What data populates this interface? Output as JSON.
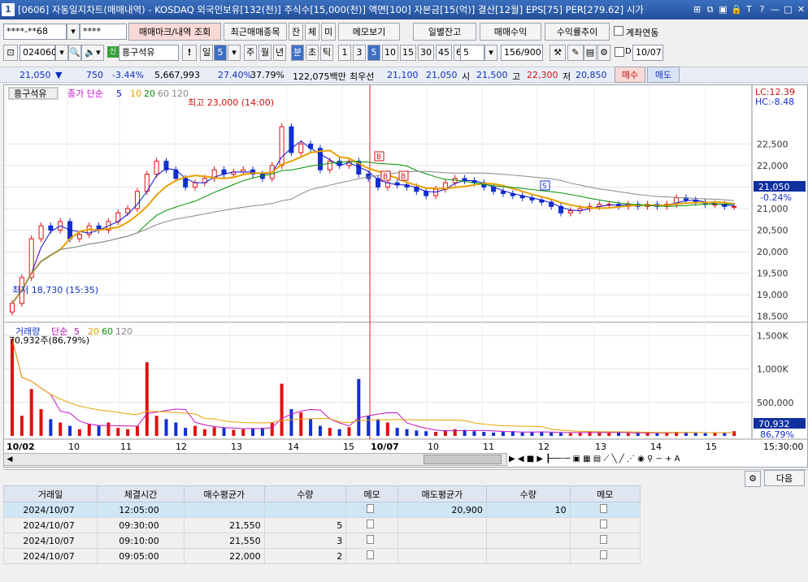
{
  "window": {
    "number": "1",
    "title": "[0606] 자동일지차트(매매내역) - KOSDAQ 외국인보유[132(천)] 주식수[15,000(천)] 액면[100] 자본금[15(억)] 결산[12월] EPS[75] PER[279.62] 시가",
    "icons": [
      "pin-icon",
      "restore-icon",
      "window-icon",
      "lock-icon",
      "text-icon",
      "help-icon",
      "minimize-icon",
      "maximize-icon",
      "close-icon"
    ],
    "icon_glyphs": [
      "⊞",
      "⧉",
      "▣",
      "🔒",
      "T",
      "?",
      "—",
      "□",
      "✕"
    ]
  },
  "toolbar1": {
    "account": "****-**68",
    "password": "****",
    "btn_trademark": "매매마크/내역 조회",
    "btn_recent": "최근매매종목",
    "btn_jan": "잔",
    "btn_che": "체",
    "btn_mi": "미",
    "btn_memo": "메모보기",
    "btn_daily_balance": "일별잔고",
    "btn_trade_profit": "매매수익",
    "btn_return_trend": "수익률추이",
    "account_link_label": "계좌연동"
  },
  "toolbar2": {
    "code": "024060",
    "stock_name": "흥구석유",
    "badge": "신",
    "period_buttons": [
      "일",
      "주",
      "월",
      "년",
      "분",
      "초",
      "틱"
    ],
    "selected_interval": "5",
    "minute_buttons": [
      "1",
      "3",
      "5",
      "10",
      "15",
      "30",
      "45",
      "60"
    ],
    "count_select": "5",
    "range": "156/900",
    "date": "10/07"
  },
  "quote": {
    "price": "21,050",
    "change_arrow": "▼",
    "change": "750",
    "change_pct": "-3.44%",
    "volume": "5,667,993",
    "ratio1": "27.40%",
    "ratio2": "37.79%",
    "amount": "122,075백만",
    "priority_label": "최우선",
    "bid": "21,100",
    "ask": "21,050",
    "open_label": "시",
    "open": "21,500",
    "high_label": "고",
    "high": "22,300",
    "low_label": "저",
    "low": "20,850",
    "buy": "매수",
    "sell": "매도"
  },
  "chart_data": [
    {
      "type": "candlestick",
      "title": "흥구석유",
      "legend": {
        "series": "종가 단순",
        "periods": [
          "5",
          "10",
          "20",
          "60",
          "120"
        ],
        "colors": [
          "#1010d0",
          "#e8a000",
          "#009000",
          "#888888"
        ]
      },
      "ylim": [
        18400,
        23600
      ],
      "yticks": [
        "22,500",
        "22,000",
        "21,500",
        "21,000",
        "20,500",
        "20,000",
        "19,500",
        "19,000",
        "18,500"
      ],
      "lc": "LC:12.39",
      "hc": "HC:-8.48",
      "current_price": "21,050",
      "current_change": "-0.24%",
      "high_note": "최고 23,000 (14:00)",
      "low_note": "최저 18,730 (15:35)",
      "buy_markers": [
        "B",
        "B",
        "B"
      ],
      "sell_markers": [
        "S"
      ],
      "closes": [
        18800,
        19400,
        20300,
        20600,
        20500,
        20700,
        20300,
        20400,
        20600,
        20500,
        20700,
        20900,
        21000,
        21400,
        21800,
        22100,
        21900,
        21700,
        21500,
        21600,
        21700,
        21900,
        21800,
        21850,
        21900,
        21800,
        21700,
        22000,
        22900,
        22300,
        22500,
        22400,
        21900,
        22100,
        22000,
        22100,
        21800,
        21700,
        21500,
        21600,
        21550,
        21500,
        21400,
        21300,
        21450,
        21600,
        21700,
        21650,
        21600,
        21500,
        21400,
        21350,
        21300,
        21250,
        21200,
        21150,
        21050,
        20900,
        20950,
        21000,
        21050,
        21100,
        21100,
        21050,
        21100,
        21050,
        21100,
        21050,
        21100,
        21250,
        21200,
        21150,
        21100,
        21100,
        21050,
        21050
      ]
    },
    {
      "type": "bar",
      "title": "거래량",
      "legend": {
        "series": "단순",
        "periods": [
          "5",
          "20",
          "60",
          "120"
        ]
      },
      "ylim": [
        0,
        1600000
      ],
      "yticks": [
        "1,500K",
        "1,000K",
        "500,000"
      ],
      "current_volume": "70,932",
      "current_pct": "86,79%",
      "peak_note": "70,932주(86,79%)",
      "values": [
        1450,
        300,
        700,
        400,
        250,
        200,
        150,
        100,
        180,
        150,
        200,
        120,
        100,
        150,
        1100,
        300,
        250,
        200,
        120,
        150,
        100,
        130,
        120,
        90,
        100,
        110,
        120,
        200,
        780,
        400,
        350,
        250,
        150,
        120,
        100,
        130,
        850,
        300,
        250,
        200,
        120,
        100,
        80,
        70,
        60,
        80,
        100,
        90,
        70,
        60,
        50,
        60,
        70,
        50,
        60,
        55,
        50,
        45,
        40,
        55,
        60,
        50,
        45,
        50,
        40,
        45,
        50,
        40,
        45,
        60,
        50,
        45,
        40,
        45,
        50,
        70
      ]
    }
  ],
  "xaxis": {
    "labels": [
      "10/02",
      "10",
      "11",
      "12",
      "13",
      "14",
      "15",
      "10/07",
      "10",
      "11",
      "12",
      "13",
      "14",
      "15"
    ],
    "time_label": "15:30:00"
  },
  "bottom": {
    "next_btn": "다음"
  },
  "trades": {
    "headers": [
      "거래일",
      "체결시간",
      "매수평균가",
      "수량",
      "메모",
      "매도평균가",
      "수량",
      "메모"
    ],
    "rows": [
      {
        "date": "2024/10/07",
        "time": "12:05:00",
        "buy_avg": "",
        "buy_qty": "",
        "sell_avg": "20,900",
        "sell_qty": "10"
      },
      {
        "date": "2024/10/07",
        "time": "09:30:00",
        "buy_avg": "21,550",
        "buy_qty": "5",
        "sell_avg": "",
        "sell_qty": ""
      },
      {
        "date": "2024/10/07",
        "time": "09:10:00",
        "buy_avg": "21,550",
        "buy_qty": "3",
        "sell_avg": "",
        "sell_qty": ""
      },
      {
        "date": "2024/10/07",
        "time": "09:05:00",
        "buy_avg": "22,000",
        "buy_qty": "2",
        "sell_avg": "",
        "sell_qty": ""
      }
    ]
  }
}
